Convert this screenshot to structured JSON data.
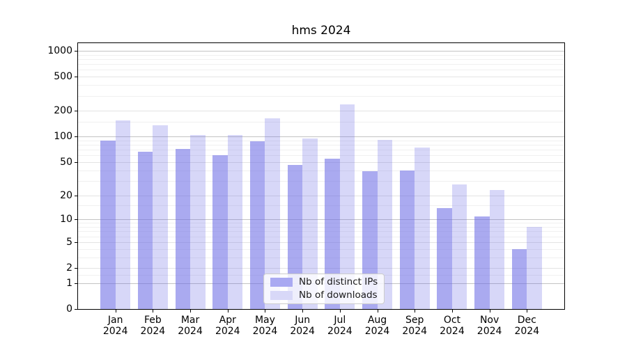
{
  "chart_data": {
    "type": "bar",
    "title": "hms 2024",
    "categories": [
      "Jan 2024",
      "Feb 2024",
      "Mar 2024",
      "Apr 2024",
      "May 2024",
      "Jun 2024",
      "Jul 2024",
      "Aug 2024",
      "Sep 2024",
      "Oct 2024",
      "Nov 2024",
      "Dec 2024"
    ],
    "series": [
      {
        "name": "Nb of distinct IPs",
        "color": "rgba(108,108,230,0.58)",
        "swatch_color": "#a9a9f2",
        "values": [
          90,
          66,
          71,
          60,
          88,
          46,
          55,
          39,
          40,
          14,
          11,
          4
        ]
      },
      {
        "name": "Nb of downloads",
        "color": "rgba(108,108,230,0.27)",
        "swatch_color": "#d8d8f8",
        "values": [
          155,
          135,
          105,
          105,
          164,
          95,
          237,
          91,
          75,
          27,
          23,
          8
        ]
      }
    ],
    "xlabel": "",
    "ylabel": "",
    "y_scale": "log1p",
    "ylim": [
      0,
      1230
    ],
    "y_ticks": [
      0,
      1,
      2,
      5,
      10,
      20,
      50,
      100,
      200,
      500,
      1000
    ],
    "decade_ticks": [
      1,
      10,
      100,
      1000
    ],
    "minor_gridlines": [
      1.5,
      3,
      4,
      6,
      7,
      8,
      9,
      15,
      30,
      40,
      60,
      70,
      80,
      90,
      150,
      300,
      400,
      600,
      700,
      800,
      900
    ],
    "grid": "horizontal major+minor",
    "legend_position": "lower center",
    "grid_colors": {
      "decade": "#c3c3c3",
      "major": "#e3e3e3",
      "minor": "#f0f0f0"
    }
  }
}
